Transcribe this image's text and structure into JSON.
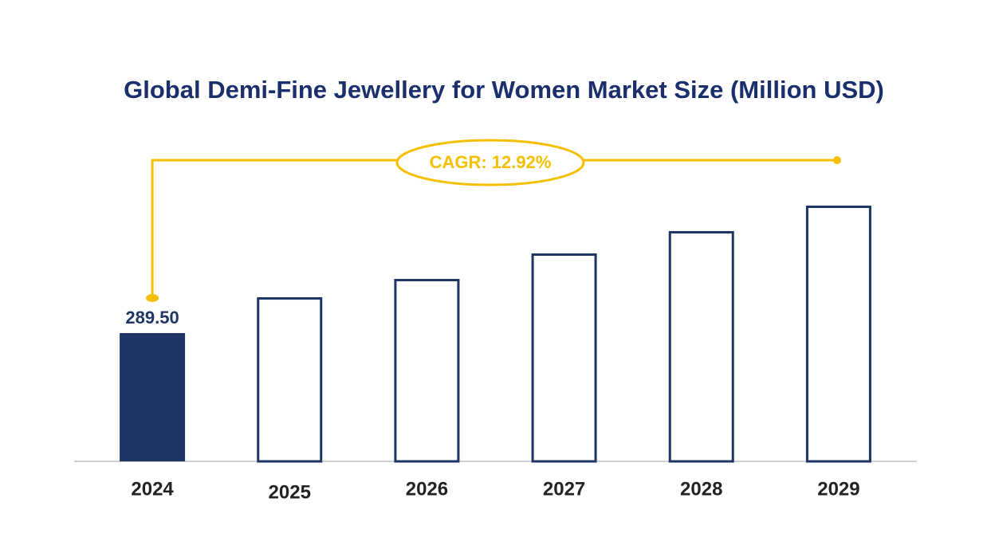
{
  "chart_data": {
    "type": "bar",
    "title": "Global Demi-Fine Jewellery for Women  Market Size (Million USD)",
    "annotation": "CAGR: 12.92%",
    "categories": [
      "2024",
      "2025",
      "2026",
      "2027",
      "2028",
      "2029"
    ],
    "values": [
      289.5,
      370.4,
      411.8,
      469.3,
      519.7,
      577.2
    ],
    "value_labels": [
      "289.50",
      null,
      null,
      null,
      null,
      null
    ],
    "color": "#1f3564",
    "highlight_color": "#1f3564",
    "annotation_color": "#f5c000"
  }
}
